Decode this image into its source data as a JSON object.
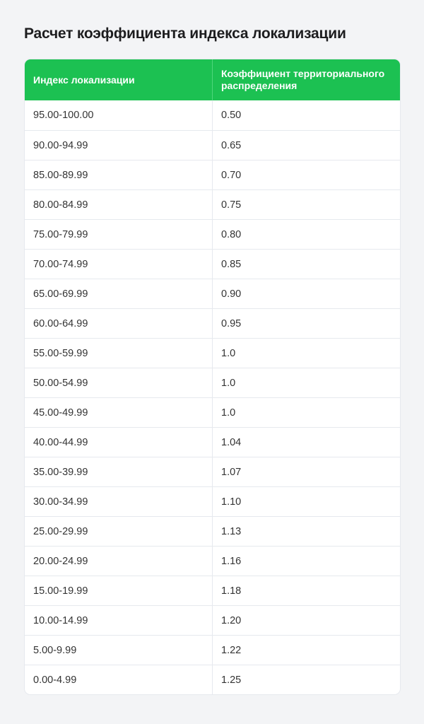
{
  "title": "Расчет коэффициента индекса локализации",
  "colors": {
    "header_bg": "#1cc152",
    "page_bg": "#f3f4f6"
  },
  "table": {
    "headers": [
      "Индекс локализации",
      "Коэффициент территориального распределения"
    ],
    "rows": [
      [
        "95.00-100.00",
        "0.50"
      ],
      [
        "90.00-94.99",
        "0.65"
      ],
      [
        "85.00-89.99",
        "0.70"
      ],
      [
        "80.00-84.99",
        "0.75"
      ],
      [
        "75.00-79.99",
        "0.80"
      ],
      [
        "70.00-74.99",
        "0.85"
      ],
      [
        "65.00-69.99",
        "0.90"
      ],
      [
        "60.00-64.99",
        "0.95"
      ],
      [
        "55.00-59.99",
        "1.0"
      ],
      [
        "50.00-54.99",
        "1.0"
      ],
      [
        "45.00-49.99",
        "1.0"
      ],
      [
        "40.00-44.99",
        "1.04"
      ],
      [
        "35.00-39.99",
        "1.07"
      ],
      [
        "30.00-34.99",
        "1.10"
      ],
      [
        "25.00-29.99",
        "1.13"
      ],
      [
        "20.00-24.99",
        "1.16"
      ],
      [
        "15.00-19.99",
        "1.18"
      ],
      [
        "10.00-14.99",
        "1.20"
      ],
      [
        "5.00-9.99",
        "1.22"
      ],
      [
        "0.00-4.99",
        "1.25"
      ]
    ]
  }
}
